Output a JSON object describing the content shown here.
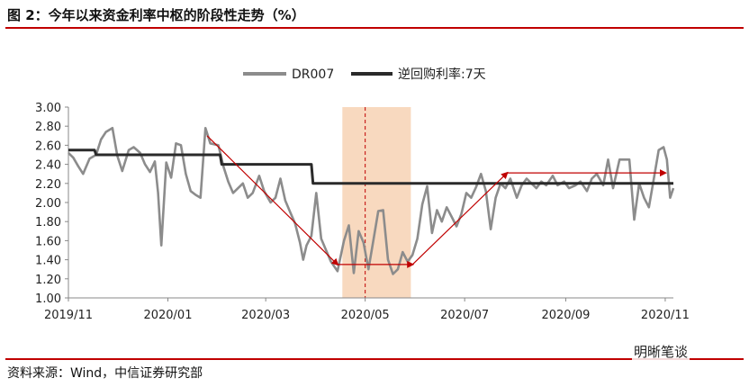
{
  "title": "图 2：今年以来资金利率中枢的阶段性走势（%）",
  "source": "资料来源：Wind，中信证券研究部",
  "watermark": "明晰笔谈",
  "chart_data": {
    "type": "line",
    "title": "图 2：今年以来资金利率中枢的阶段性走势（%）",
    "xlabel": "",
    "ylabel": "",
    "ylim": [
      1.0,
      3.0
    ],
    "yticks": [
      "3.00",
      "2.80",
      "2.60",
      "2.40",
      "2.20",
      "2.00",
      "1.80",
      "1.60",
      "1.40",
      "1.20",
      "1.00"
    ],
    "xlim": [
      "2019-11-01",
      "2020-11-06"
    ],
    "xticks": [
      {
        "date": "2019-11-01",
        "label": "2019/11"
      },
      {
        "date": "2020-01-01",
        "label": "2020/01"
      },
      {
        "date": "2020-03-01",
        "label": "2020/03"
      },
      {
        "date": "2020-05-01",
        "label": "2020/05"
      },
      {
        "date": "2020-07-01",
        "label": "2020/07"
      },
      {
        "date": "2020-09-01",
        "label": "2020/09"
      },
      {
        "date": "2020-11-01",
        "label": "2020/11"
      }
    ],
    "grid": false,
    "legend_position": "top-center",
    "shaded_region": {
      "start": "2020-04-17",
      "end": "2020-05-29",
      "color": "#f8d9bf"
    },
    "dashed_marker": {
      "date": "2020-05-01",
      "color": "#c00000"
    },
    "colors": {
      "dr007": "#8c8c8c",
      "reverse_repo": "#2a2a2a",
      "annotation": "#c00000"
    },
    "series": [
      {
        "name": "DR007",
        "points": [
          [
            "2019-11-01",
            2.52
          ],
          [
            "2019-11-04",
            2.47
          ],
          [
            "2019-11-07",
            2.38
          ],
          [
            "2019-11-10",
            2.3
          ],
          [
            "2019-11-14",
            2.46
          ],
          [
            "2019-11-18",
            2.5
          ],
          [
            "2019-11-21",
            2.66
          ],
          [
            "2019-11-24",
            2.74
          ],
          [
            "2019-11-28",
            2.78
          ],
          [
            "2019-12-01",
            2.49
          ],
          [
            "2019-12-04",
            2.33
          ],
          [
            "2019-12-08",
            2.55
          ],
          [
            "2019-12-11",
            2.58
          ],
          [
            "2019-12-15",
            2.52
          ],
          [
            "2019-12-18",
            2.4
          ],
          [
            "2019-12-21",
            2.32
          ],
          [
            "2019-12-24",
            2.43
          ],
          [
            "2019-12-26",
            2.1
          ],
          [
            "2019-12-28",
            1.55
          ],
          [
            "2019-12-31",
            2.42
          ],
          [
            "2020-01-03",
            2.26
          ],
          [
            "2020-01-06",
            2.62
          ],
          [
            "2020-01-09",
            2.6
          ],
          [
            "2020-01-12",
            2.3
          ],
          [
            "2020-01-15",
            2.12
          ],
          [
            "2020-01-18",
            2.08
          ],
          [
            "2020-01-21",
            2.05
          ],
          [
            "2020-01-24",
            2.78
          ],
          [
            "2020-01-27",
            2.62
          ],
          [
            "2020-02-01",
            2.6
          ],
          [
            "2020-02-04",
            2.38
          ],
          [
            "2020-02-07",
            2.22
          ],
          [
            "2020-02-10",
            2.1
          ],
          [
            "2020-02-13",
            2.15
          ],
          [
            "2020-02-16",
            2.2
          ],
          [
            "2020-02-19",
            2.05
          ],
          [
            "2020-02-22",
            2.1
          ],
          [
            "2020-02-26",
            2.28
          ],
          [
            "2020-02-29",
            2.12
          ],
          [
            "2020-03-04",
            2.0
          ],
          [
            "2020-03-07",
            2.05
          ],
          [
            "2020-03-10",
            2.25
          ],
          [
            "2020-03-13",
            2.02
          ],
          [
            "2020-03-16",
            1.9
          ],
          [
            "2020-03-19",
            1.78
          ],
          [
            "2020-03-22",
            1.58
          ],
          [
            "2020-03-24",
            1.4
          ],
          [
            "2020-03-26",
            1.55
          ],
          [
            "2020-03-29",
            1.65
          ],
          [
            "2020-04-01",
            2.1
          ],
          [
            "2020-04-04",
            1.62
          ],
          [
            "2020-04-07",
            1.5
          ],
          [
            "2020-04-10",
            1.38
          ],
          [
            "2020-04-14",
            1.28
          ],
          [
            "2020-04-18",
            1.6
          ],
          [
            "2020-04-21",
            1.76
          ],
          [
            "2020-04-24",
            1.26
          ],
          [
            "2020-04-27",
            1.7
          ],
          [
            "2020-04-30",
            1.58
          ],
          [
            "2020-05-03",
            1.3
          ],
          [
            "2020-05-06",
            1.6
          ],
          [
            "2020-05-09",
            1.91
          ],
          [
            "2020-05-12",
            1.92
          ],
          [
            "2020-05-15",
            1.4
          ],
          [
            "2020-05-18",
            1.25
          ],
          [
            "2020-05-21",
            1.3
          ],
          [
            "2020-05-24",
            1.48
          ],
          [
            "2020-05-27",
            1.38
          ],
          [
            "2020-05-30",
            1.45
          ],
          [
            "2020-06-02",
            1.62
          ],
          [
            "2020-06-05",
            1.98
          ],
          [
            "2020-06-08",
            2.17
          ],
          [
            "2020-06-11",
            1.68
          ],
          [
            "2020-06-14",
            1.92
          ],
          [
            "2020-06-17",
            1.8
          ],
          [
            "2020-06-20",
            1.95
          ],
          [
            "2020-06-23",
            1.85
          ],
          [
            "2020-06-26",
            1.75
          ],
          [
            "2020-06-29",
            1.88
          ],
          [
            "2020-07-02",
            2.1
          ],
          [
            "2020-07-05",
            2.05
          ],
          [
            "2020-07-08",
            2.16
          ],
          [
            "2020-07-11",
            2.3
          ],
          [
            "2020-07-14",
            2.12
          ],
          [
            "2020-07-17",
            1.72
          ],
          [
            "2020-07-20",
            2.05
          ],
          [
            "2020-07-23",
            2.2
          ],
          [
            "2020-07-26",
            2.15
          ],
          [
            "2020-07-29",
            2.25
          ],
          [
            "2020-08-02",
            2.05
          ],
          [
            "2020-08-05",
            2.18
          ],
          [
            "2020-08-08",
            2.25
          ],
          [
            "2020-08-11",
            2.2
          ],
          [
            "2020-08-14",
            2.15
          ],
          [
            "2020-08-17",
            2.22
          ],
          [
            "2020-08-20",
            2.18
          ],
          [
            "2020-08-24",
            2.28
          ],
          [
            "2020-08-27",
            2.18
          ],
          [
            "2020-08-31",
            2.22
          ],
          [
            "2020-09-03",
            2.15
          ],
          [
            "2020-09-07",
            2.18
          ],
          [
            "2020-09-10",
            2.22
          ],
          [
            "2020-09-14",
            2.12
          ],
          [
            "2020-09-17",
            2.25
          ],
          [
            "2020-09-20",
            2.3
          ],
          [
            "2020-09-24",
            2.18
          ],
          [
            "2020-09-27",
            2.45
          ],
          [
            "2020-09-30",
            2.15
          ],
          [
            "2020-10-04",
            2.45
          ],
          [
            "2020-10-07",
            2.45
          ],
          [
            "2020-10-10",
            2.45
          ],
          [
            "2020-10-13",
            1.82
          ],
          [
            "2020-10-16",
            2.2
          ],
          [
            "2020-10-19",
            2.05
          ],
          [
            "2020-10-22",
            1.95
          ],
          [
            "2020-10-25",
            2.25
          ],
          [
            "2020-10-28",
            2.55
          ],
          [
            "2020-10-31",
            2.58
          ],
          [
            "2020-11-02",
            2.45
          ],
          [
            "2020-11-04",
            2.05
          ],
          [
            "2020-11-06",
            2.15
          ]
        ]
      },
      {
        "name": "逆回购利率:7天",
        "points": [
          [
            "2019-11-01",
            2.55
          ],
          [
            "2019-11-17",
            2.55
          ],
          [
            "2019-11-18",
            2.5
          ],
          [
            "2020-02-02",
            2.5
          ],
          [
            "2020-02-03",
            2.4
          ],
          [
            "2020-03-29",
            2.4
          ],
          [
            "2020-03-30",
            2.2
          ],
          [
            "2020-11-06",
            2.2
          ]
        ]
      }
    ],
    "annotations": [
      {
        "type": "arrow",
        "from": [
          "2020-01-25",
          2.7
        ],
        "to": [
          "2020-04-14",
          1.35
        ]
      },
      {
        "type": "arrow",
        "from": [
          "2020-04-14",
          1.35
        ],
        "to": [
          "2020-05-30",
          1.35
        ]
      },
      {
        "type": "arrow",
        "from": [
          "2020-05-30",
          1.35
        ],
        "to": [
          "2020-07-27",
          2.31
        ]
      },
      {
        "type": "arrow",
        "from": [
          "2020-07-27",
          2.31
        ],
        "to": [
          "2020-11-01",
          2.31
        ]
      }
    ]
  }
}
